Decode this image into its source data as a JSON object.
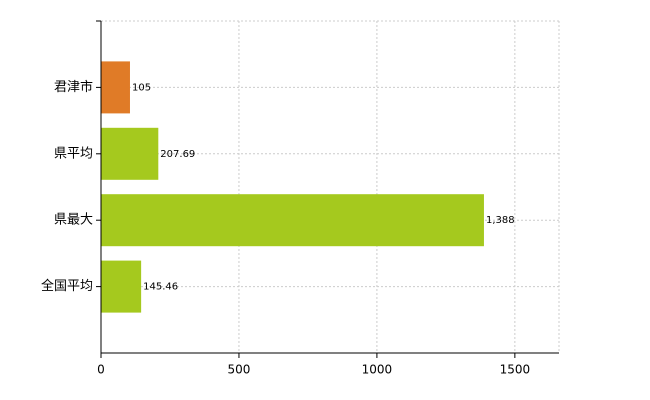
{
  "chart_data": {
    "type": "hbar",
    "categories": [
      "君津市",
      "県平均",
      "県最大",
      "全国平均"
    ],
    "values": [
      105,
      207.69,
      1388,
      145.46
    ],
    "value_labels": [
      "105",
      "207.69",
      "1,388",
      "145.46"
    ],
    "colors": [
      "#e07b27",
      "#a5c91e",
      "#a5c91e",
      "#a5c91e"
    ],
    "xlim": [
      0,
      1660
    ],
    "xticks": [
      0,
      500,
      1000,
      1500
    ],
    "grid": true
  }
}
